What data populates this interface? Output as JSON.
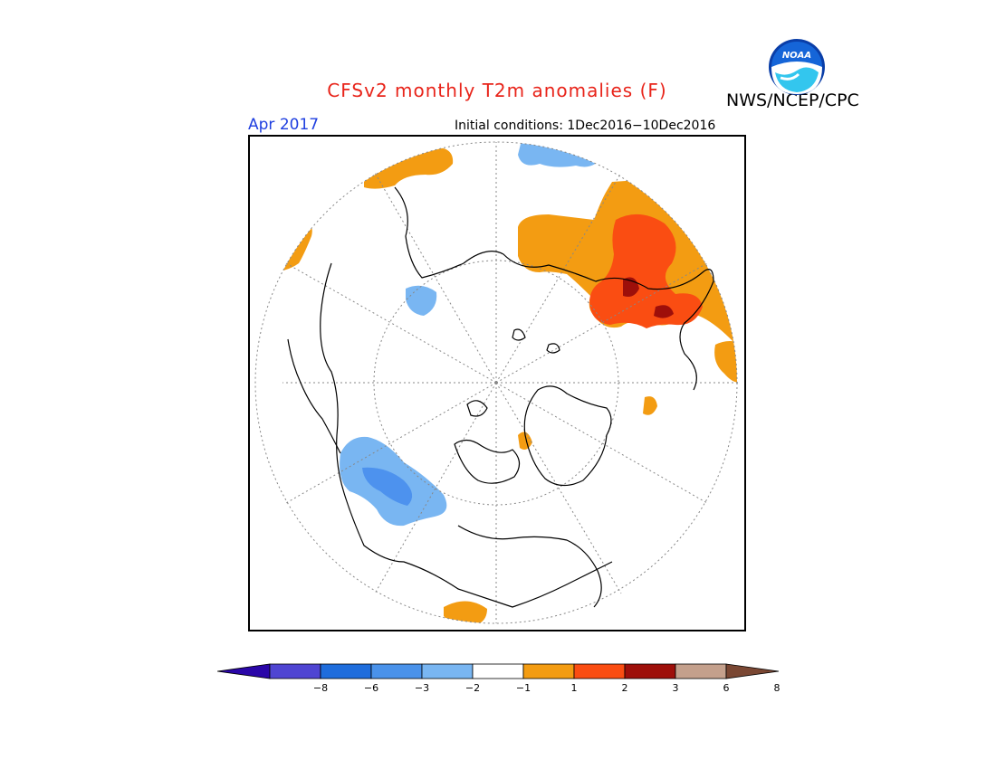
{
  "title": "CFSv2 monthly T2m anomalies (F)",
  "agency": "NWS/NCEP/CPC",
  "month": "Apr 2017",
  "initial_conditions": "Initial conditions: 1Dec2016−10Dec2016",
  "logo": {
    "icon": "noaa-logo-icon",
    "text": "NOAA"
  },
  "colors": {
    "title": "#e8241a",
    "month": "#1f3fe0",
    "warm1": "#f39c12",
    "warm2": "#fa4d12",
    "warm3": "#9e0f0a",
    "cool1": "#79b6f2",
    "cool2": "#4d92ee",
    "coast": "#000000"
  },
  "legend": {
    "colors": [
      "#2a06a8",
      "#4f45d2",
      "#1f6ddc",
      "#4a92ea",
      "#79b6f2",
      "#ffffff",
      "#f39c12",
      "#fa4d12",
      "#9e0f0a",
      "#c4a08c",
      "#7a4733"
    ],
    "labels": [
      "−8",
      "−6",
      "−3",
      "−2",
      "−1",
      "1",
      "2",
      "3",
      "6",
      "8"
    ]
  }
}
